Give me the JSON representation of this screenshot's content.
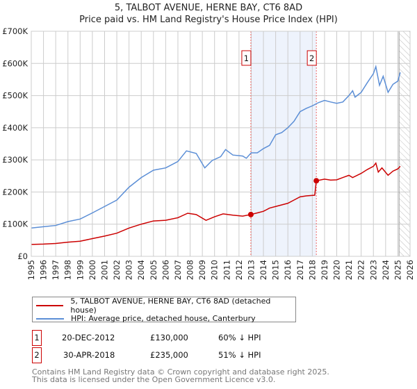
{
  "title_line1": "5, TALBOT AVENUE, HERNE BAY, CT6 8AD",
  "title_line2": "Price paid vs. HM Land Registry's House Price Index (HPI)",
  "chart_data": {
    "type": "line",
    "title": "5, TALBOT AVENUE, HERNE BAY, CT6 8AD — Price paid vs. HM Land Registry's House Price Index (HPI)",
    "xlim": [
      1995,
      2026
    ],
    "ylim": [
      0,
      700000
    ],
    "x_ticks": [
      "1995",
      "1996",
      "1997",
      "1998",
      "1999",
      "2000",
      "2001",
      "2002",
      "2003",
      "2004",
      "2005",
      "2006",
      "2007",
      "2008",
      "2009",
      "2010",
      "2011",
      "2012",
      "2013",
      "2014",
      "2015",
      "2016",
      "2017",
      "2018",
      "2019",
      "2020",
      "2021",
      "2022",
      "2023",
      "2024",
      "2025",
      "2026"
    ],
    "y_ticks": [
      {
        "v": 0,
        "label": "£0"
      },
      {
        "v": 100000,
        "label": "£100K"
      },
      {
        "v": 200000,
        "label": "£200K"
      },
      {
        "v": 300000,
        "label": "£300K"
      },
      {
        "v": 400000,
        "label": "£400K"
      },
      {
        "v": 500000,
        "label": "£500K"
      },
      {
        "v": 600000,
        "label": "£600K"
      },
      {
        "v": 700000,
        "label": "£700K"
      }
    ],
    "grid": true,
    "shaded_region": [
      2012.97,
      2018.33
    ],
    "forecast_hatch_from": 2025.1,
    "colors": {
      "price": "#cc0000",
      "hpi": "#5b8ed6",
      "shade": "#eef3fc",
      "marker_line": "#e66"
    },
    "series": [
      {
        "name": "5, TALBOT AVENUE, HERNE BAY, CT6 8AD (detached house)",
        "key": "price",
        "x": [
          1995,
          1996,
          1997,
          1998,
          1999,
          2000,
          2001,
          2002,
          2003,
          2004,
          2005,
          2006,
          2007,
          2007.8,
          2008.5,
          2009.3,
          2010,
          2010.7,
          2011.5,
          2012.3,
          2012.97,
          2013.5,
          2014,
          2014.5,
          2015,
          2016,
          2016.5,
          2017,
          2017.5,
          2018.2,
          2018.33,
          2019,
          2019.5,
          2020,
          2020.5,
          2021,
          2021.3,
          2022,
          2022.5,
          2023,
          2023.2,
          2023.4,
          2023.7,
          2024.2,
          2024.6,
          2025,
          2025.2
        ],
        "y": [
          37000,
          38000,
          40000,
          44000,
          47000,
          55000,
          63000,
          72000,
          88000,
          100000,
          110000,
          112000,
          120000,
          134000,
          130000,
          112000,
          123000,
          132000,
          128000,
          125000,
          130000,
          135000,
          140000,
          150000,
          155000,
          165000,
          175000,
          185000,
          188000,
          190000,
          235000,
          240000,
          237000,
          238000,
          245000,
          252000,
          245000,
          258000,
          270000,
          280000,
          290000,
          262000,
          275000,
          252000,
          265000,
          272000,
          280000
        ]
      },
      {
        "name": "HPI: Average price, detached house, Canterbury",
        "key": "hpi",
        "x": [
          1995,
          1996,
          1997,
          1998,
          1999,
          2000,
          2001,
          2002,
          2003,
          2004,
          2005,
          2006,
          2007,
          2007.7,
          2008.5,
          2009.2,
          2009.8,
          2010.5,
          2010.9,
          2011.5,
          2012.3,
          2012.6,
          2013,
          2013.5,
          2014,
          2014.5,
          2015,
          2015.5,
          2016,
          2016.5,
          2017,
          2017.5,
          2018,
          2018.5,
          2019,
          2019.5,
          2020,
          2020.5,
          2021,
          2021.3,
          2021.5,
          2022,
          2022.5,
          2023,
          2023.2,
          2023.5,
          2023.8,
          2024.2,
          2024.6,
          2025,
          2025.2
        ],
        "y": [
          88000,
          92000,
          96000,
          108000,
          116000,
          135000,
          155000,
          175000,
          215000,
          245000,
          268000,
          275000,
          295000,
          328000,
          320000,
          275000,
          298000,
          310000,
          332000,
          315000,
          312000,
          305000,
          322000,
          322000,
          335000,
          345000,
          378000,
          385000,
          400000,
          420000,
          450000,
          460000,
          468000,
          478000,
          485000,
          480000,
          476000,
          480000,
          500000,
          515000,
          495000,
          510000,
          540000,
          568000,
          590000,
          532000,
          560000,
          510000,
          535000,
          545000,
          572000
        ]
      }
    ],
    "annotations": [
      {
        "id": "1",
        "x": 2012.97,
        "y": 130000
      },
      {
        "id": "2",
        "x": 2018.33,
        "y": 235000
      }
    ]
  },
  "legend": [
    {
      "label": "5, TALBOT AVENUE, HERNE BAY, CT6 8AD (detached house)"
    },
    {
      "label": "HPI: Average price, detached house, Canterbury"
    }
  ],
  "sales": [
    {
      "id": "1",
      "date": "20-DEC-2012",
      "price": "£130,000",
      "hpi": "60% ↓ HPI"
    },
    {
      "id": "2",
      "date": "30-APR-2018",
      "price": "£235,000",
      "hpi": "51% ↓ HPI"
    }
  ],
  "footer_line1": "Contains HM Land Registry data © Crown copyright and database right 2025.",
  "footer_line2": "This data is licensed under the Open Government Licence v3.0."
}
